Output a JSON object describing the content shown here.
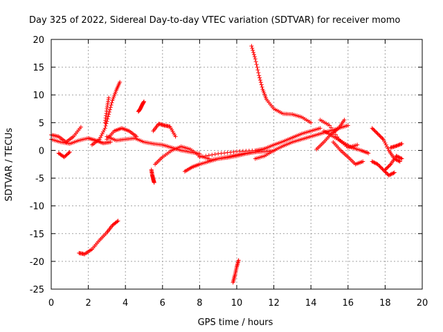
{
  "chart_data": {
    "type": "scatter",
    "title": "Day 325 of 2022, Sidereal Day-to-day VTEC variation (SDTVAR) for receiver momo",
    "xlabel": "GPS time / hours",
    "ylabel": "SDTVAR / TECUs",
    "xlim": [
      0,
      20
    ],
    "ylim": [
      -25,
      20
    ],
    "xticks": [
      "0",
      "2",
      "4",
      "6",
      "8",
      "10",
      "12",
      "14",
      "16",
      "18",
      "20"
    ],
    "yticks": [
      "-25",
      "-20",
      "-15",
      "-10",
      "-5",
      "0",
      "5",
      "10",
      "15",
      "20"
    ],
    "grid": true,
    "marker": "+",
    "color": "#ff0000",
    "series": [
      {
        "name": "arc-01",
        "x": [
          0.0,
          0.5,
          1.0,
          1.5,
          2.0,
          2.4,
          2.8,
          3.2
        ],
        "y": [
          2.0,
          1.5,
          1.2,
          1.8,
          2.2,
          1.8,
          1.3,
          1.5
        ]
      },
      {
        "name": "arc-02",
        "x": [
          0.0,
          0.4,
          0.8,
          1.2,
          1.6
        ],
        "y": [
          2.8,
          2.5,
          1.5,
          2.5,
          4.2
        ]
      },
      {
        "name": "arc-03",
        "x": [
          0.4,
          0.7,
          1.0
        ],
        "y": [
          -0.5,
          -1.2,
          -0.3
        ]
      },
      {
        "name": "arc-04",
        "x": [
          1.5,
          1.8,
          2.2,
          2.6,
          3.0,
          3.3,
          3.6
        ],
        "y": [
          -18.5,
          -18.7,
          -17.8,
          -16.2,
          -14.8,
          -13.5,
          -12.7
        ]
      },
      {
        "name": "arc-05",
        "x": [
          2.2,
          2.6,
          2.9,
          3.1,
          3.3,
          3.5,
          3.7
        ],
        "y": [
          1.0,
          2.0,
          4.0,
          6.5,
          9.0,
          10.8,
          12.3
        ]
      },
      {
        "name": "arc-06",
        "x": [
          2.9,
          3.0,
          3.1
        ],
        "y": [
          5.0,
          7.5,
          9.5
        ]
      },
      {
        "name": "arc-07",
        "x": [
          3.0,
          3.4,
          3.8,
          4.2,
          4.6
        ],
        "y": [
          2.0,
          3.5,
          4.0,
          3.5,
          2.5
        ]
      },
      {
        "name": "arc-08",
        "x": [
          3.0,
          3.5,
          4.0,
          4.5,
          5.0,
          5.5,
          6.0,
          6.5,
          7.0,
          7.5,
          8.0
        ],
        "y": [
          2.5,
          1.8,
          2.0,
          2.2,
          1.5,
          1.2,
          1.0,
          0.5,
          0.0,
          -0.3,
          -0.6
        ]
      },
      {
        "name": "arc-09",
        "x": [
          4.7,
          4.8,
          4.9,
          5.0
        ],
        "y": [
          7.0,
          7.5,
          8.2,
          8.8
        ]
      },
      {
        "name": "arc-10",
        "x": [
          5.4,
          5.45,
          5.5,
          5.55
        ],
        "y": [
          -3.5,
          -4.5,
          -5.2,
          -5.8
        ]
      },
      {
        "name": "arc-11",
        "x": [
          5.5,
          5.8,
          6.1,
          6.4,
          6.7
        ],
        "y": [
          3.5,
          4.8,
          4.5,
          4.3,
          2.5
        ]
      },
      {
        "name": "arc-12",
        "x": [
          5.6,
          6.0,
          6.5,
          7.0,
          7.5,
          8.0,
          8.5
        ],
        "y": [
          -2.5,
          -1.2,
          0.0,
          0.7,
          0.2,
          -1.0,
          -1.5
        ]
      },
      {
        "name": "arc-13",
        "x": [
          7.2,
          7.6,
          8.0,
          8.5,
          9.0,
          9.5,
          10.0,
          10.5,
          11.0,
          11.5,
          12.0
        ],
        "y": [
          -3.8,
          -3.0,
          -2.5,
          -2.0,
          -1.5,
          -1.2,
          -0.8,
          -0.5,
          -0.3,
          -0.2,
          -0.1
        ]
      },
      {
        "name": "arc-14",
        "x": [
          8.0,
          9.0,
          10.0,
          11.0,
          11.5
        ],
        "y": [
          -1.2,
          -0.6,
          -0.2,
          0.0,
          0.3
        ]
      },
      {
        "name": "arc-15",
        "x": [
          8.5,
          9.0,
          9.5,
          10.0,
          10.5,
          11.0,
          11.5,
          12.0,
          12.5,
          13.0,
          13.5,
          14.0,
          14.5
        ],
        "y": [
          -1.8,
          -1.5,
          -1.3,
          -1.0,
          -0.6,
          -0.3,
          0.3,
          1.0,
          1.6,
          2.3,
          3.0,
          3.5,
          4.0
        ]
      },
      {
        "name": "arc-16",
        "x": [
          9.8,
          9.9,
          10.0,
          10.1
        ],
        "y": [
          -23.8,
          -22.5,
          -21.0,
          -19.8
        ]
      },
      {
        "name": "arc-17",
        "x": [
          10.8,
          11.0,
          11.2,
          11.4,
          11.6,
          12.0,
          12.5,
          13.0,
          13.5,
          14.0
        ],
        "y": [
          18.8,
          16.5,
          13.5,
          11.0,
          9.2,
          7.5,
          6.6,
          6.5,
          6.0,
          5.0
        ]
      },
      {
        "name": "arc-18",
        "x": [
          11.0,
          11.5,
          12.0,
          12.5,
          13.0,
          13.5,
          14.0,
          14.5,
          15.0,
          15.5,
          16.0
        ],
        "y": [
          -1.5,
          -1.0,
          0.0,
          0.8,
          1.5,
          2.0,
          2.5,
          3.0,
          3.5,
          4.0,
          4.5
        ]
      },
      {
        "name": "arc-19",
        "x": [
          14.3,
          14.7,
          15.1,
          15.5,
          15.8
        ],
        "y": [
          0.2,
          1.5,
          3.0,
          4.0,
          5.5
        ]
      },
      {
        "name": "arc-20",
        "x": [
          14.5,
          15.0,
          15.5,
          16.0,
          16.5
        ],
        "y": [
          5.5,
          4.5,
          2.0,
          0.5,
          1.0
        ]
      },
      {
        "name": "arc-21",
        "x": [
          14.7,
          15.2,
          15.7,
          16.2,
          16.7,
          17.1
        ],
        "y": [
          3.5,
          2.5,
          1.5,
          0.5,
          0.0,
          -0.5
        ]
      },
      {
        "name": "arc-22",
        "x": [
          15.2,
          15.6,
          16.0,
          16.4,
          16.8
        ],
        "y": [
          1.5,
          0.0,
          -1.2,
          -2.5,
          -2.0
        ]
      },
      {
        "name": "arc-23",
        "x": [
          17.3,
          17.6,
          17.9,
          18.2,
          18.5
        ],
        "y": [
          -2.0,
          -2.5,
          -3.5,
          -4.5,
          -4.0
        ]
      },
      {
        "name": "arc-24",
        "x": [
          17.3,
          17.6,
          17.9,
          18.2,
          18.5,
          18.8
        ],
        "y": [
          4.0,
          3.0,
          2.0,
          0.0,
          -1.5,
          -2.0
        ]
      },
      {
        "name": "arc-25",
        "x": [
          18.0,
          18.3,
          18.6,
          18.9
        ],
        "y": [
          -3.5,
          -2.5,
          -1.0,
          -1.5
        ]
      },
      {
        "name": "arc-26",
        "x": [
          18.3,
          18.6,
          18.9
        ],
        "y": [
          0.5,
          0.8,
          1.2
        ]
      }
    ]
  }
}
